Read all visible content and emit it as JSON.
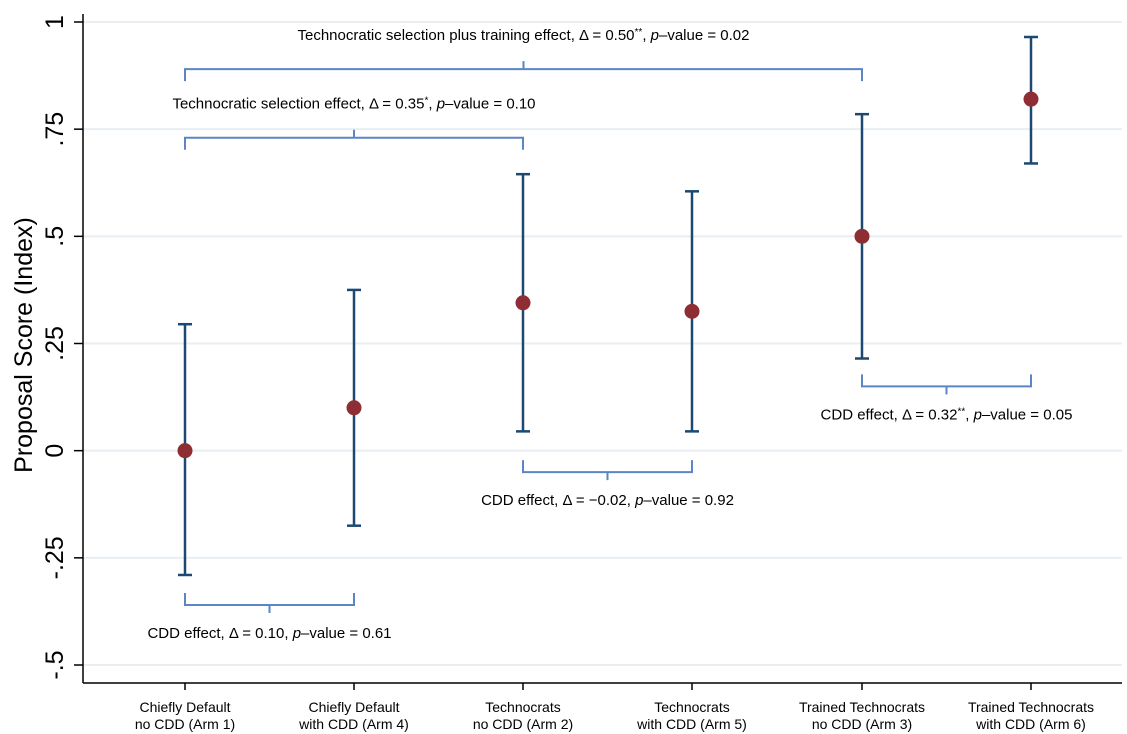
{
  "chart_data": {
    "type": "scatter",
    "subtype": "point estimates with confidence intervals",
    "ylabel": "Proposal Score (Index)",
    "ylim": [
      -0.5,
      1
    ],
    "yticks": [
      {
        "value": -0.5,
        "label": "-.5"
      },
      {
        "value": -0.25,
        "label": "-.25"
      },
      {
        "value": 0,
        "label": "0"
      },
      {
        "value": 0.25,
        "label": ".25"
      },
      {
        "value": 0.5,
        "label": ".5"
      },
      {
        "value": 0.75,
        "label": ".75"
      },
      {
        "value": 1,
        "label": "1"
      }
    ],
    "grid": true,
    "categories": [
      [
        "Chiefly Default",
        "no CDD (Arm 1)"
      ],
      [
        "Chiefly Default",
        "with CDD (Arm 4)"
      ],
      [
        "Technocrats",
        "no CDD (Arm 2)"
      ],
      [
        "Technocrats",
        "with CDD (Arm 5)"
      ],
      [
        "Trained Technocrats",
        "no CDD (Arm 3)"
      ],
      [
        "Trained Technocrats",
        "with CDD (Arm 6)"
      ]
    ],
    "estimates": [
      0.0,
      0.1,
      0.345,
      0.325,
      0.5,
      0.82
    ],
    "ci_low": [
      -0.29,
      -0.175,
      0.045,
      0.045,
      0.215,
      0.67
    ],
    "ci_high": [
      0.295,
      0.375,
      0.645,
      0.605,
      0.785,
      0.965
    ],
    "annotations": [
      {
        "from": 0,
        "to": 4,
        "bracket_y": 0.89,
        "orientation": "open-down",
        "parts": [
          {
            "t": "Technocratic selection plus training effect, Δ = 0.50"
          },
          {
            "t": "**",
            "sup": true
          },
          {
            "t": ",  "
          },
          {
            "t": "p",
            "italic": true
          },
          {
            "t": "–value =  0.02"
          }
        ]
      },
      {
        "from": 0,
        "to": 2,
        "bracket_y": 0.73,
        "orientation": "open-down",
        "parts": [
          {
            "t": "Technocratic selection effect,  Δ = 0.35"
          },
          {
            "t": "*",
            "sup": true
          },
          {
            "t": ",  "
          },
          {
            "t": "p",
            "italic": true
          },
          {
            "t": "–value = 0.10"
          }
        ]
      },
      {
        "from": 0,
        "to": 1,
        "bracket_y": -0.36,
        "orientation": "open-up",
        "parts": [
          {
            "t": "CDD effect, Δ = 0.10,  "
          },
          {
            "t": "p",
            "italic": true
          },
          {
            "t": "–value = 0.61"
          }
        ]
      },
      {
        "from": 2,
        "to": 3,
        "bracket_y": -0.05,
        "orientation": "open-up",
        "parts": [
          {
            "t": "CDD effect, Δ = −0.02,  "
          },
          {
            "t": "p",
            "italic": true
          },
          {
            "t": "–value = 0.92"
          }
        ]
      },
      {
        "from": 4,
        "to": 5,
        "bracket_y": 0.15,
        "orientation": "open-up",
        "parts": [
          {
            "t": "CDD effect, Δ = 0.32"
          },
          {
            "t": "**",
            "sup": true
          },
          {
            "t": ",  "
          },
          {
            "t": "p",
            "italic": true
          },
          {
            "t": "–value = 0.05"
          }
        ]
      }
    ],
    "colors": {
      "marker": "#8e2d33",
      "ci": "#1c4871",
      "bracket": "#5a86c5",
      "axis": "#000000",
      "grid": "#e8eef2",
      "text": "#000000"
    }
  }
}
